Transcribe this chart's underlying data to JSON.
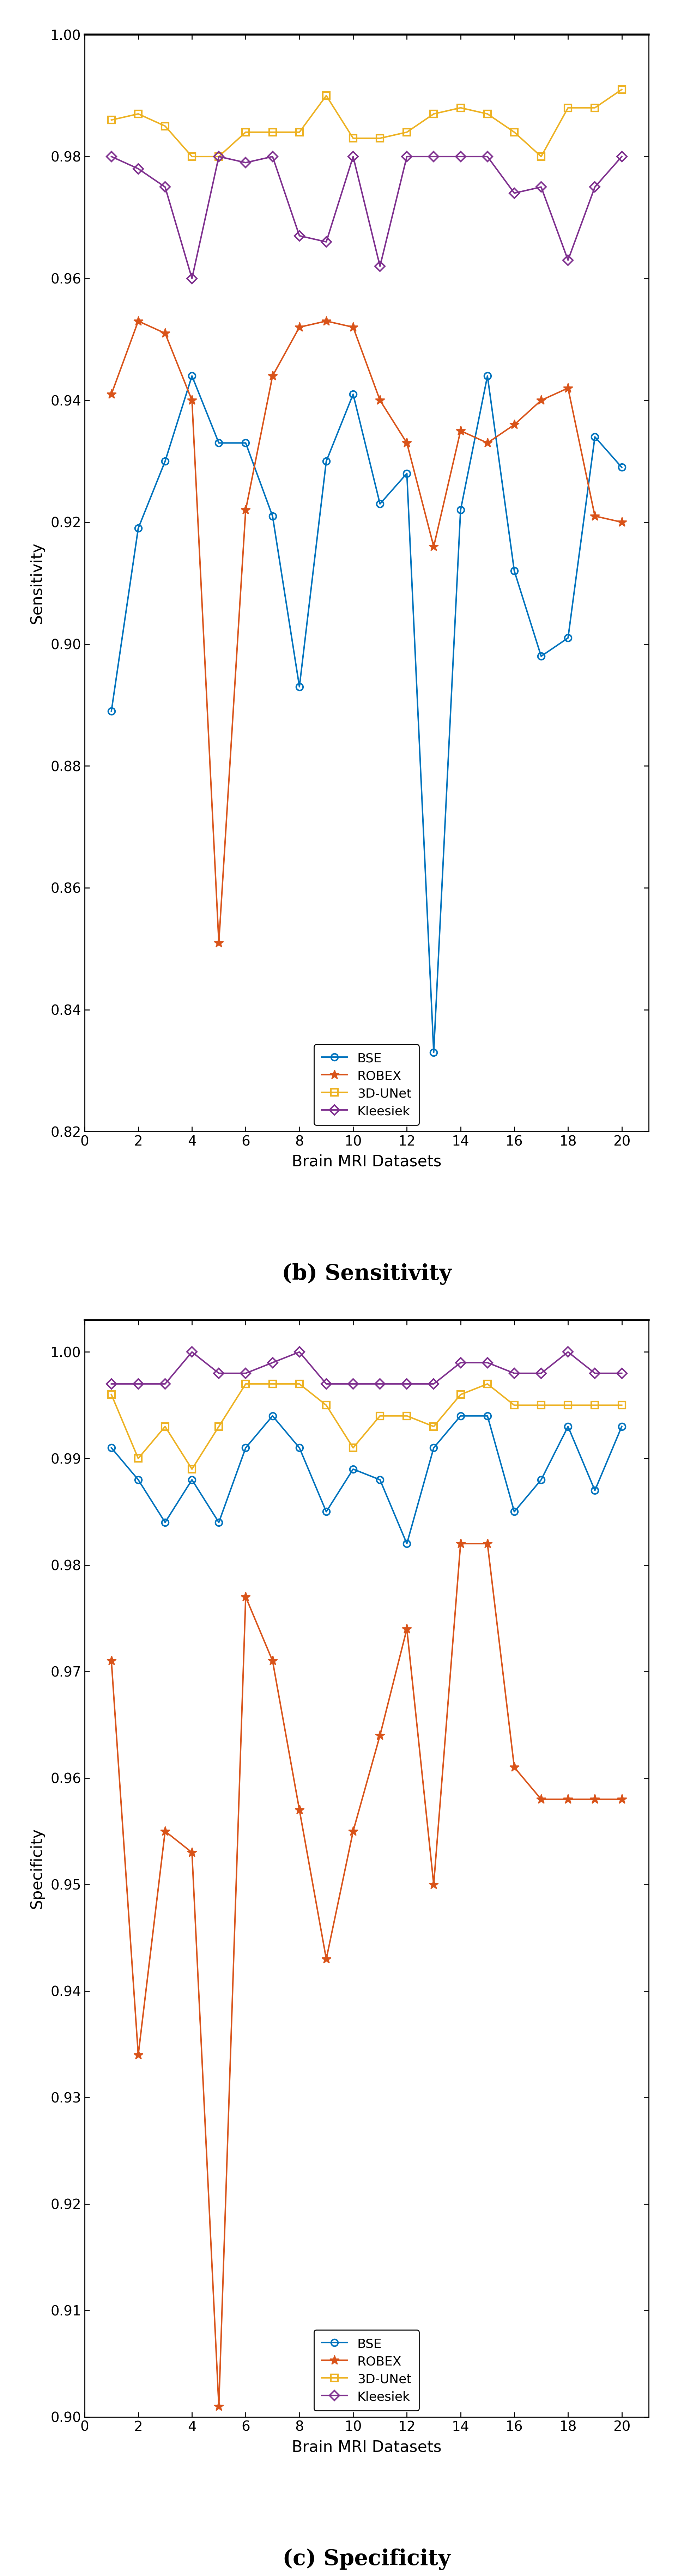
{
  "x": [
    1,
    2,
    3,
    4,
    5,
    6,
    7,
    8,
    9,
    10,
    11,
    12,
    13,
    14,
    15,
    16,
    17,
    18,
    19,
    20
  ],
  "sensitivity": {
    "BSE": [
      0.889,
      0.919,
      0.93,
      0.944,
      0.933,
      0.933,
      0.921,
      0.893,
      0.93,
      0.941,
      0.923,
      0.928,
      0.833,
      0.922,
      0.944,
      0.912,
      0.898,
      0.901,
      0.934,
      0.929
    ],
    "ROBEX": [
      0.941,
      0.953,
      0.951,
      0.94,
      0.851,
      0.922,
      0.944,
      0.952,
      0.953,
      0.952,
      0.94,
      0.933,
      0.916,
      0.935,
      0.933,
      0.936,
      0.94,
      0.942,
      0.921,
      0.92
    ],
    "3DUNet": [
      0.986,
      0.987,
      0.985,
      0.98,
      0.98,
      0.984,
      0.984,
      0.984,
      0.99,
      0.983,
      0.983,
      0.984,
      0.987,
      0.988,
      0.987,
      0.984,
      0.98,
      0.988,
      0.988,
      0.991
    ],
    "Kleesiek": [
      0.98,
      0.978,
      0.975,
      0.96,
      0.98,
      0.979,
      0.98,
      0.967,
      0.966,
      0.98,
      0.962,
      0.98,
      0.98,
      0.98,
      0.98,
      0.974,
      0.975,
      0.963,
      0.975,
      0.98
    ]
  },
  "specificity": {
    "BSE": [
      0.991,
      0.988,
      0.984,
      0.988,
      0.984,
      0.991,
      0.994,
      0.991,
      0.985,
      0.989,
      0.988,
      0.982,
      0.991,
      0.994,
      0.994,
      0.985,
      0.988,
      0.993,
      0.987,
      0.993
    ],
    "ROBEX": [
      0.971,
      0.934,
      0.955,
      0.953,
      0.901,
      0.977,
      0.971,
      0.957,
      0.943,
      0.955,
      0.964,
      0.974,
      0.95,
      0.982,
      0.982,
      0.961,
      0.958,
      0.958,
      0.958,
      0.958
    ],
    "3DUNet": [
      0.996,
      0.99,
      0.993,
      0.989,
      0.993,
      0.997,
      0.997,
      0.997,
      0.995,
      0.991,
      0.994,
      0.994,
      0.993,
      0.996,
      0.997,
      0.995,
      0.995,
      0.995,
      0.995,
      0.995
    ],
    "Kleesiek": [
      0.997,
      0.997,
      0.997,
      1.0,
      0.998,
      0.998,
      0.999,
      1.0,
      0.997,
      0.997,
      0.997,
      0.997,
      0.997,
      0.999,
      0.999,
      0.998,
      0.998,
      1.0,
      0.998,
      0.998
    ]
  },
  "colors": {
    "BSE": "#0072BD",
    "ROBEX": "#D95319",
    "3DUNet": "#EDB120",
    "Kleesiek": "#7E2F8E"
  },
  "markers": {
    "BSE": "o",
    "ROBEX": "*",
    "3DUNet": "s",
    "Kleesiek": "D"
  },
  "sensitivity_ylim": [
    0.82,
    1.0
  ],
  "sensitivity_yticks": [
    0.82,
    0.84,
    0.86,
    0.88,
    0.9,
    0.92,
    0.94,
    0.96,
    0.98,
    1.0
  ],
  "specificity_ylim": [
    0.9,
    1.003
  ],
  "specificity_yticks": [
    0.9,
    0.91,
    0.92,
    0.93,
    0.94,
    0.95,
    0.96,
    0.97,
    0.98,
    0.99,
    1.0
  ],
  "xlabel": "Brain MRI Datasets",
  "sensitivity_ylabel": "Sensitivity",
  "specificity_ylabel": "Specificity",
  "sensitivity_caption": "(b) Sensitivity",
  "specificity_caption": "(c) Specificity",
  "xlim": [
    0,
    21
  ],
  "xticks": [
    0,
    2,
    4,
    6,
    8,
    10,
    12,
    14,
    16,
    18,
    20
  ]
}
